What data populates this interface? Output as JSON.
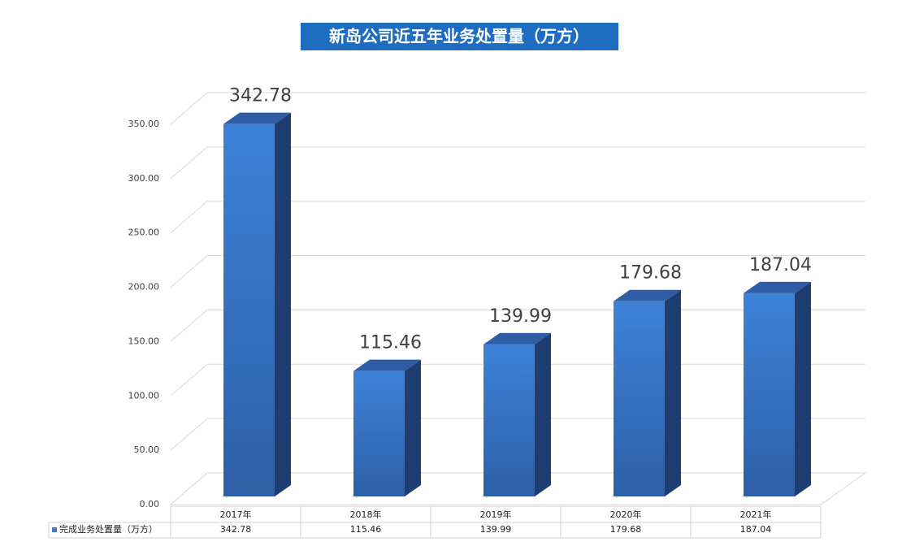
{
  "chart_data": {
    "type": "bar3d",
    "title": "新岛公司近五年业务处置量（万方）",
    "categories": [
      "2017年",
      "2018年",
      "2019年",
      "2020年",
      "2021年"
    ],
    "series": [
      {
        "name": "完成业务处置量（万方）",
        "color": "#3a7bd0",
        "values": [
          342.78,
          115.46,
          139.99,
          179.68,
          187.04
        ]
      }
    ],
    "ylim": [
      0,
      350
    ],
    "yticks": [
      {
        "value": 0,
        "label": "0.00"
      },
      {
        "value": 50,
        "label": "50.00"
      },
      {
        "value": 100,
        "label": "100.00"
      },
      {
        "value": 150,
        "label": "150.00"
      },
      {
        "value": 200,
        "label": "200.00"
      },
      {
        "value": 250,
        "label": "250.00"
      },
      {
        "value": 300,
        "label": "300.00"
      },
      {
        "value": 350,
        "label": "350.00"
      }
    ],
    "grid": true,
    "data_table": true
  }
}
